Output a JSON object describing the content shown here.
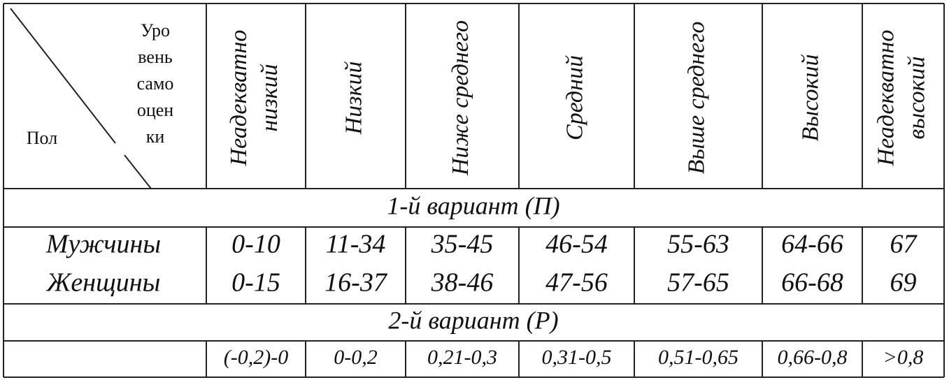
{
  "corner": {
    "level_lines": [
      "Уро",
      "вень",
      "само",
      "оцен",
      "ки"
    ],
    "sex": "Пол"
  },
  "columns": [
    [
      "Неадекватно",
      "низкий"
    ],
    [
      "Низкий"
    ],
    [
      "Ниже среднего"
    ],
    [
      "Средний"
    ],
    [
      "Выше среднего"
    ],
    [
      "Высокий"
    ],
    [
      "Неадекватно",
      "высокий"
    ]
  ],
  "variant1": {
    "title": "1-й вариант (П)",
    "rows": [
      {
        "label": "Мужчины",
        "values": [
          "0-10",
          "11-34",
          "35-45",
          "46-54",
          "55-63",
          "64-66",
          "67"
        ]
      },
      {
        "label": "Женщины",
        "values": [
          "0-15",
          "16-37",
          "38-46",
          "47-56",
          "57-65",
          "66-68",
          "69"
        ]
      }
    ]
  },
  "variant2": {
    "title": "2-й вариант (Р)",
    "values": [
      "(-0,2)-0",
      "0-0,2",
      "0,21-0,3",
      "0,31-0,5",
      "0,51-0,65",
      "0,66-0,8",
      ">0,8"
    ]
  }
}
